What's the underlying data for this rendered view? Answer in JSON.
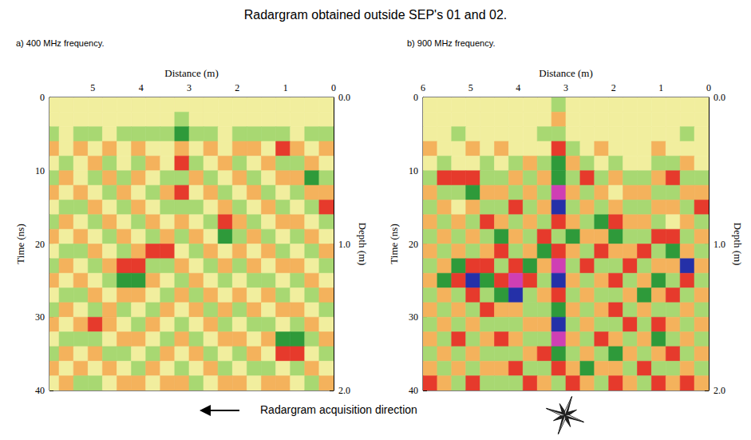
{
  "title": "Radargram obtained outside SEP's 01 and 02.",
  "annotation": "Radargram acquisition direction",
  "chart_data": [
    {
      "type": "heatmap",
      "title": "a) 400 MHz frequency.",
      "x_label": "Distance (m)",
      "y_label": "Time (ns)",
      "y2_label": "Depth (m)",
      "xlim": [
        5.9,
        0
      ],
      "xticks": [
        0,
        1,
        2,
        3,
        4,
        5
      ],
      "ylim": [
        0,
        40
      ],
      "yticks": [
        0,
        10,
        20,
        30,
        40
      ],
      "y2lim": [
        0,
        2
      ],
      "y2ticks": [
        {
          "value": 0,
          "label": "0.0"
        },
        {
          "value": 1,
          "label": "1.0"
        },
        {
          "value": 2,
          "label": "2.0"
        }
      ],
      "x_bins": [
        6,
        5.7,
        5.4,
        5.1,
        4.8,
        4.5,
        4.2,
        3.9,
        3.6,
        3.3,
        3,
        2.7,
        2.4,
        2.1,
        1.8,
        1.5,
        1.2,
        0.9,
        0.6,
        0.3,
        0
      ],
      "y_bins": [
        0,
        2,
        4,
        6,
        8,
        10,
        12,
        14,
        16,
        18,
        20,
        22,
        24,
        26,
        28,
        30,
        32,
        34,
        36,
        38,
        40
      ],
      "cells": [
        [
          0,
          0,
          0,
          0,
          0,
          0,
          0,
          0,
          0,
          0,
          0,
          0,
          0,
          0,
          0,
          0,
          0,
          0,
          0,
          0
        ],
        [
          0,
          0,
          0,
          0,
          0,
          0,
          0,
          0,
          0,
          -1,
          0,
          0,
          0,
          0,
          0,
          0,
          0,
          0,
          0,
          0
        ],
        [
          -1,
          0,
          -1,
          -1,
          0,
          -1,
          -1,
          -1,
          -1,
          -2,
          -1,
          -1,
          0,
          -1,
          -1,
          -1,
          -1,
          0,
          -1,
          -1
        ],
        [
          1,
          0,
          1,
          0,
          1,
          0,
          1,
          0,
          0,
          1,
          0,
          1,
          0,
          1,
          1,
          0,
          2,
          1,
          0,
          1
        ],
        [
          0,
          -1,
          0,
          1,
          -1,
          0,
          -1,
          1,
          0,
          2,
          -1,
          0,
          1,
          -1,
          0,
          1,
          -1,
          -1,
          1,
          0
        ],
        [
          -1,
          1,
          0,
          -1,
          1,
          -1,
          1,
          0,
          -1,
          -1,
          1,
          -1,
          0,
          1,
          -1,
          0,
          1,
          1,
          -2,
          -1
        ],
        [
          1,
          0,
          1,
          0,
          -1,
          1,
          0,
          -1,
          1,
          2,
          0,
          1,
          -1,
          0,
          1,
          -1,
          0,
          -1,
          1,
          1
        ],
        [
          0,
          -1,
          -1,
          1,
          0,
          -1,
          1,
          0,
          -1,
          -1,
          -1,
          0,
          1,
          -1,
          0,
          1,
          -1,
          0,
          -1,
          2
        ],
        [
          -1,
          1,
          0,
          -1,
          1,
          0,
          -1,
          1,
          0,
          1,
          0,
          -1,
          2,
          1,
          -1,
          0,
          1,
          1,
          0,
          -1
        ],
        [
          1,
          0,
          1,
          0,
          -1,
          1,
          0,
          -1,
          1,
          -1,
          1,
          0,
          -2,
          -1,
          1,
          -1,
          0,
          -1,
          1,
          0
        ],
        [
          0,
          -1,
          -1,
          1,
          0,
          -1,
          1,
          2,
          2,
          0,
          -1,
          1,
          0,
          1,
          0,
          1,
          -1,
          0,
          -1,
          1
        ],
        [
          -1,
          1,
          0,
          -1,
          1,
          2,
          2,
          -1,
          -1,
          1,
          0,
          -1,
          1,
          -1,
          1,
          0,
          1,
          1,
          0,
          -1
        ],
        [
          1,
          0,
          1,
          0,
          -1,
          -2,
          -2,
          1,
          0,
          -1,
          1,
          0,
          -1,
          0,
          -1,
          -1,
          0,
          -1,
          1,
          0
        ],
        [
          0,
          -1,
          -1,
          1,
          0,
          1,
          1,
          0,
          -1,
          1,
          -1,
          1,
          0,
          1,
          0,
          1,
          -1,
          0,
          -1,
          1
        ],
        [
          -1,
          1,
          0,
          -1,
          1,
          -1,
          0,
          -1,
          1,
          0,
          1,
          -1,
          1,
          -1,
          1,
          0,
          1,
          1,
          0,
          -1
        ],
        [
          1,
          0,
          1,
          2,
          1,
          0,
          -1,
          1,
          0,
          -1,
          0,
          1,
          -1,
          0,
          -1,
          -1,
          0,
          -1,
          1,
          0
        ],
        [
          0,
          -1,
          -1,
          -1,
          0,
          1,
          1,
          0,
          -1,
          1,
          -1,
          0,
          1,
          1,
          0,
          1,
          -2,
          -2,
          -1,
          1
        ],
        [
          -1,
          1,
          0,
          1,
          -1,
          -1,
          0,
          -1,
          1,
          0,
          1,
          -1,
          0,
          -1,
          1,
          0,
          2,
          2,
          0,
          -1
        ],
        [
          1,
          0,
          1,
          0,
          1,
          0,
          -1,
          1,
          0,
          -1,
          0,
          1,
          -1,
          0,
          -1,
          -1,
          0,
          -1,
          1,
          0
        ],
        [
          0,
          1,
          -1,
          -1,
          0,
          1,
          1,
          0,
          1,
          1,
          -1,
          0,
          1,
          1,
          0,
          1,
          1,
          0,
          -1,
          1
        ]
      ]
    },
    {
      "type": "heatmap",
      "title": "b) 900 MHz frequency.",
      "x_label": "Distance (m)",
      "y_label": "Time (ns)",
      "y2_label": "Depth (m)",
      "xlim": [
        6,
        0
      ],
      "xticks": [
        0,
        1,
        2,
        3,
        4,
        5,
        6
      ],
      "ylim": [
        0,
        40
      ],
      "yticks": [
        0,
        10,
        20,
        30,
        40
      ],
      "y2lim": [
        0,
        2
      ],
      "y2ticks": [
        {
          "value": 0,
          "label": "0.0"
        },
        {
          "value": 1,
          "label": "1.0"
        },
        {
          "value": 2,
          "label": "2.0"
        }
      ],
      "x_bins": [
        6,
        5.7,
        5.4,
        5.1,
        4.8,
        4.5,
        4.2,
        3.9,
        3.6,
        3.3,
        3,
        2.7,
        2.4,
        2.1,
        1.8,
        1.5,
        1.2,
        0.9,
        0.6,
        0.3,
        0
      ],
      "y_bins": [
        0,
        2,
        4,
        6,
        8,
        10,
        12,
        14,
        16,
        18,
        20,
        22,
        24,
        26,
        28,
        30,
        32,
        34,
        36,
        38,
        40
      ],
      "cells": [
        [
          0,
          0,
          0,
          0,
          0,
          0,
          0,
          0,
          0,
          -1,
          0,
          0,
          0,
          0,
          0,
          0,
          0,
          0,
          0,
          0
        ],
        [
          0,
          0,
          0,
          0,
          0,
          0,
          0,
          0,
          0,
          1,
          0,
          0,
          0,
          0,
          0,
          0,
          0,
          0,
          0,
          0
        ],
        [
          0,
          0,
          -1,
          0,
          0,
          0,
          0,
          0,
          -1,
          -1,
          0,
          0,
          0,
          0,
          0,
          0,
          0,
          0,
          -1,
          0
        ],
        [
          1,
          0,
          0,
          1,
          0,
          1,
          0,
          0,
          0,
          2,
          -1,
          0,
          1,
          0,
          0,
          0,
          1,
          0,
          0,
          0
        ],
        [
          0,
          -1,
          0,
          0,
          -1,
          0,
          -1,
          1,
          -1,
          -2,
          1,
          -1,
          0,
          -1,
          0,
          0,
          -1,
          -1,
          1,
          0
        ],
        [
          -1,
          2,
          2,
          2,
          -1,
          -1,
          1,
          -1,
          1,
          -2,
          -1,
          2,
          -1,
          1,
          -1,
          -1,
          1,
          2,
          -1,
          -1
        ],
        [
          1,
          -1,
          -1,
          -2,
          1,
          1,
          -1,
          1,
          -1,
          3,
          1,
          -1,
          1,
          0,
          1,
          1,
          -1,
          -1,
          1,
          1
        ],
        [
          -1,
          1,
          0,
          1,
          -1,
          -1,
          2,
          -1,
          1,
          -3,
          -1,
          1,
          -1,
          1,
          -1,
          -1,
          1,
          1,
          -1,
          2
        ],
        [
          1,
          -1,
          1,
          -1,
          2,
          1,
          -1,
          1,
          -1,
          2,
          1,
          -1,
          -2,
          2,
          1,
          1,
          -1,
          0,
          1,
          -1
        ],
        [
          -1,
          1,
          -1,
          1,
          -1,
          -2,
          1,
          -1,
          2,
          -1,
          -2,
          1,
          1,
          -2,
          -1,
          -1,
          2,
          2,
          -1,
          1
        ],
        [
          1,
          -1,
          1,
          -1,
          1,
          2,
          -1,
          1,
          -2,
          2,
          1,
          -1,
          2,
          1,
          1,
          2,
          -1,
          -2,
          1,
          -1
        ],
        [
          -1,
          1,
          -2,
          2,
          2,
          -1,
          2,
          -2,
          1,
          3,
          -1,
          2,
          -1,
          -1,
          2,
          -1,
          1,
          1,
          -3,
          1
        ],
        [
          1,
          -2,
          2,
          -3,
          -2,
          2,
          3,
          2,
          -1,
          -3,
          1,
          -1,
          1,
          2,
          -1,
          1,
          -2,
          -1,
          2,
          -1
        ],
        [
          -1,
          1,
          -1,
          2,
          -1,
          -2,
          -3,
          -1,
          1,
          2,
          -1,
          1,
          -1,
          -1,
          1,
          -2,
          1,
          2,
          -1,
          1
        ],
        [
          1,
          -1,
          1,
          -1,
          2,
          1,
          1,
          -1,
          -1,
          -2,
          1,
          -1,
          1,
          2,
          -1,
          1,
          -1,
          -1,
          1,
          -1
        ],
        [
          -1,
          1,
          -1,
          1,
          -1,
          -1,
          -1,
          1,
          1,
          -3,
          -1,
          1,
          -1,
          -1,
          2,
          -1,
          2,
          1,
          -1,
          1
        ],
        [
          1,
          -1,
          2,
          -1,
          1,
          2,
          1,
          -1,
          -1,
          3,
          1,
          -1,
          2,
          1,
          -1,
          1,
          -2,
          -1,
          1,
          -1
        ],
        [
          -1,
          1,
          -1,
          1,
          -1,
          -1,
          -1,
          1,
          2,
          -2,
          -1,
          1,
          -1,
          -2,
          1,
          -1,
          1,
          2,
          -1,
          1
        ],
        [
          1,
          -1,
          1,
          -1,
          1,
          1,
          2,
          -1,
          -1,
          2,
          1,
          -2,
          1,
          1,
          -1,
          2,
          -1,
          -1,
          1,
          -1
        ],
        [
          2,
          1,
          -1,
          2,
          -1,
          -1,
          -1,
          2,
          1,
          -1,
          2,
          1,
          -1,
          2,
          1,
          -1,
          2,
          1,
          2,
          1
        ]
      ]
    }
  ]
}
